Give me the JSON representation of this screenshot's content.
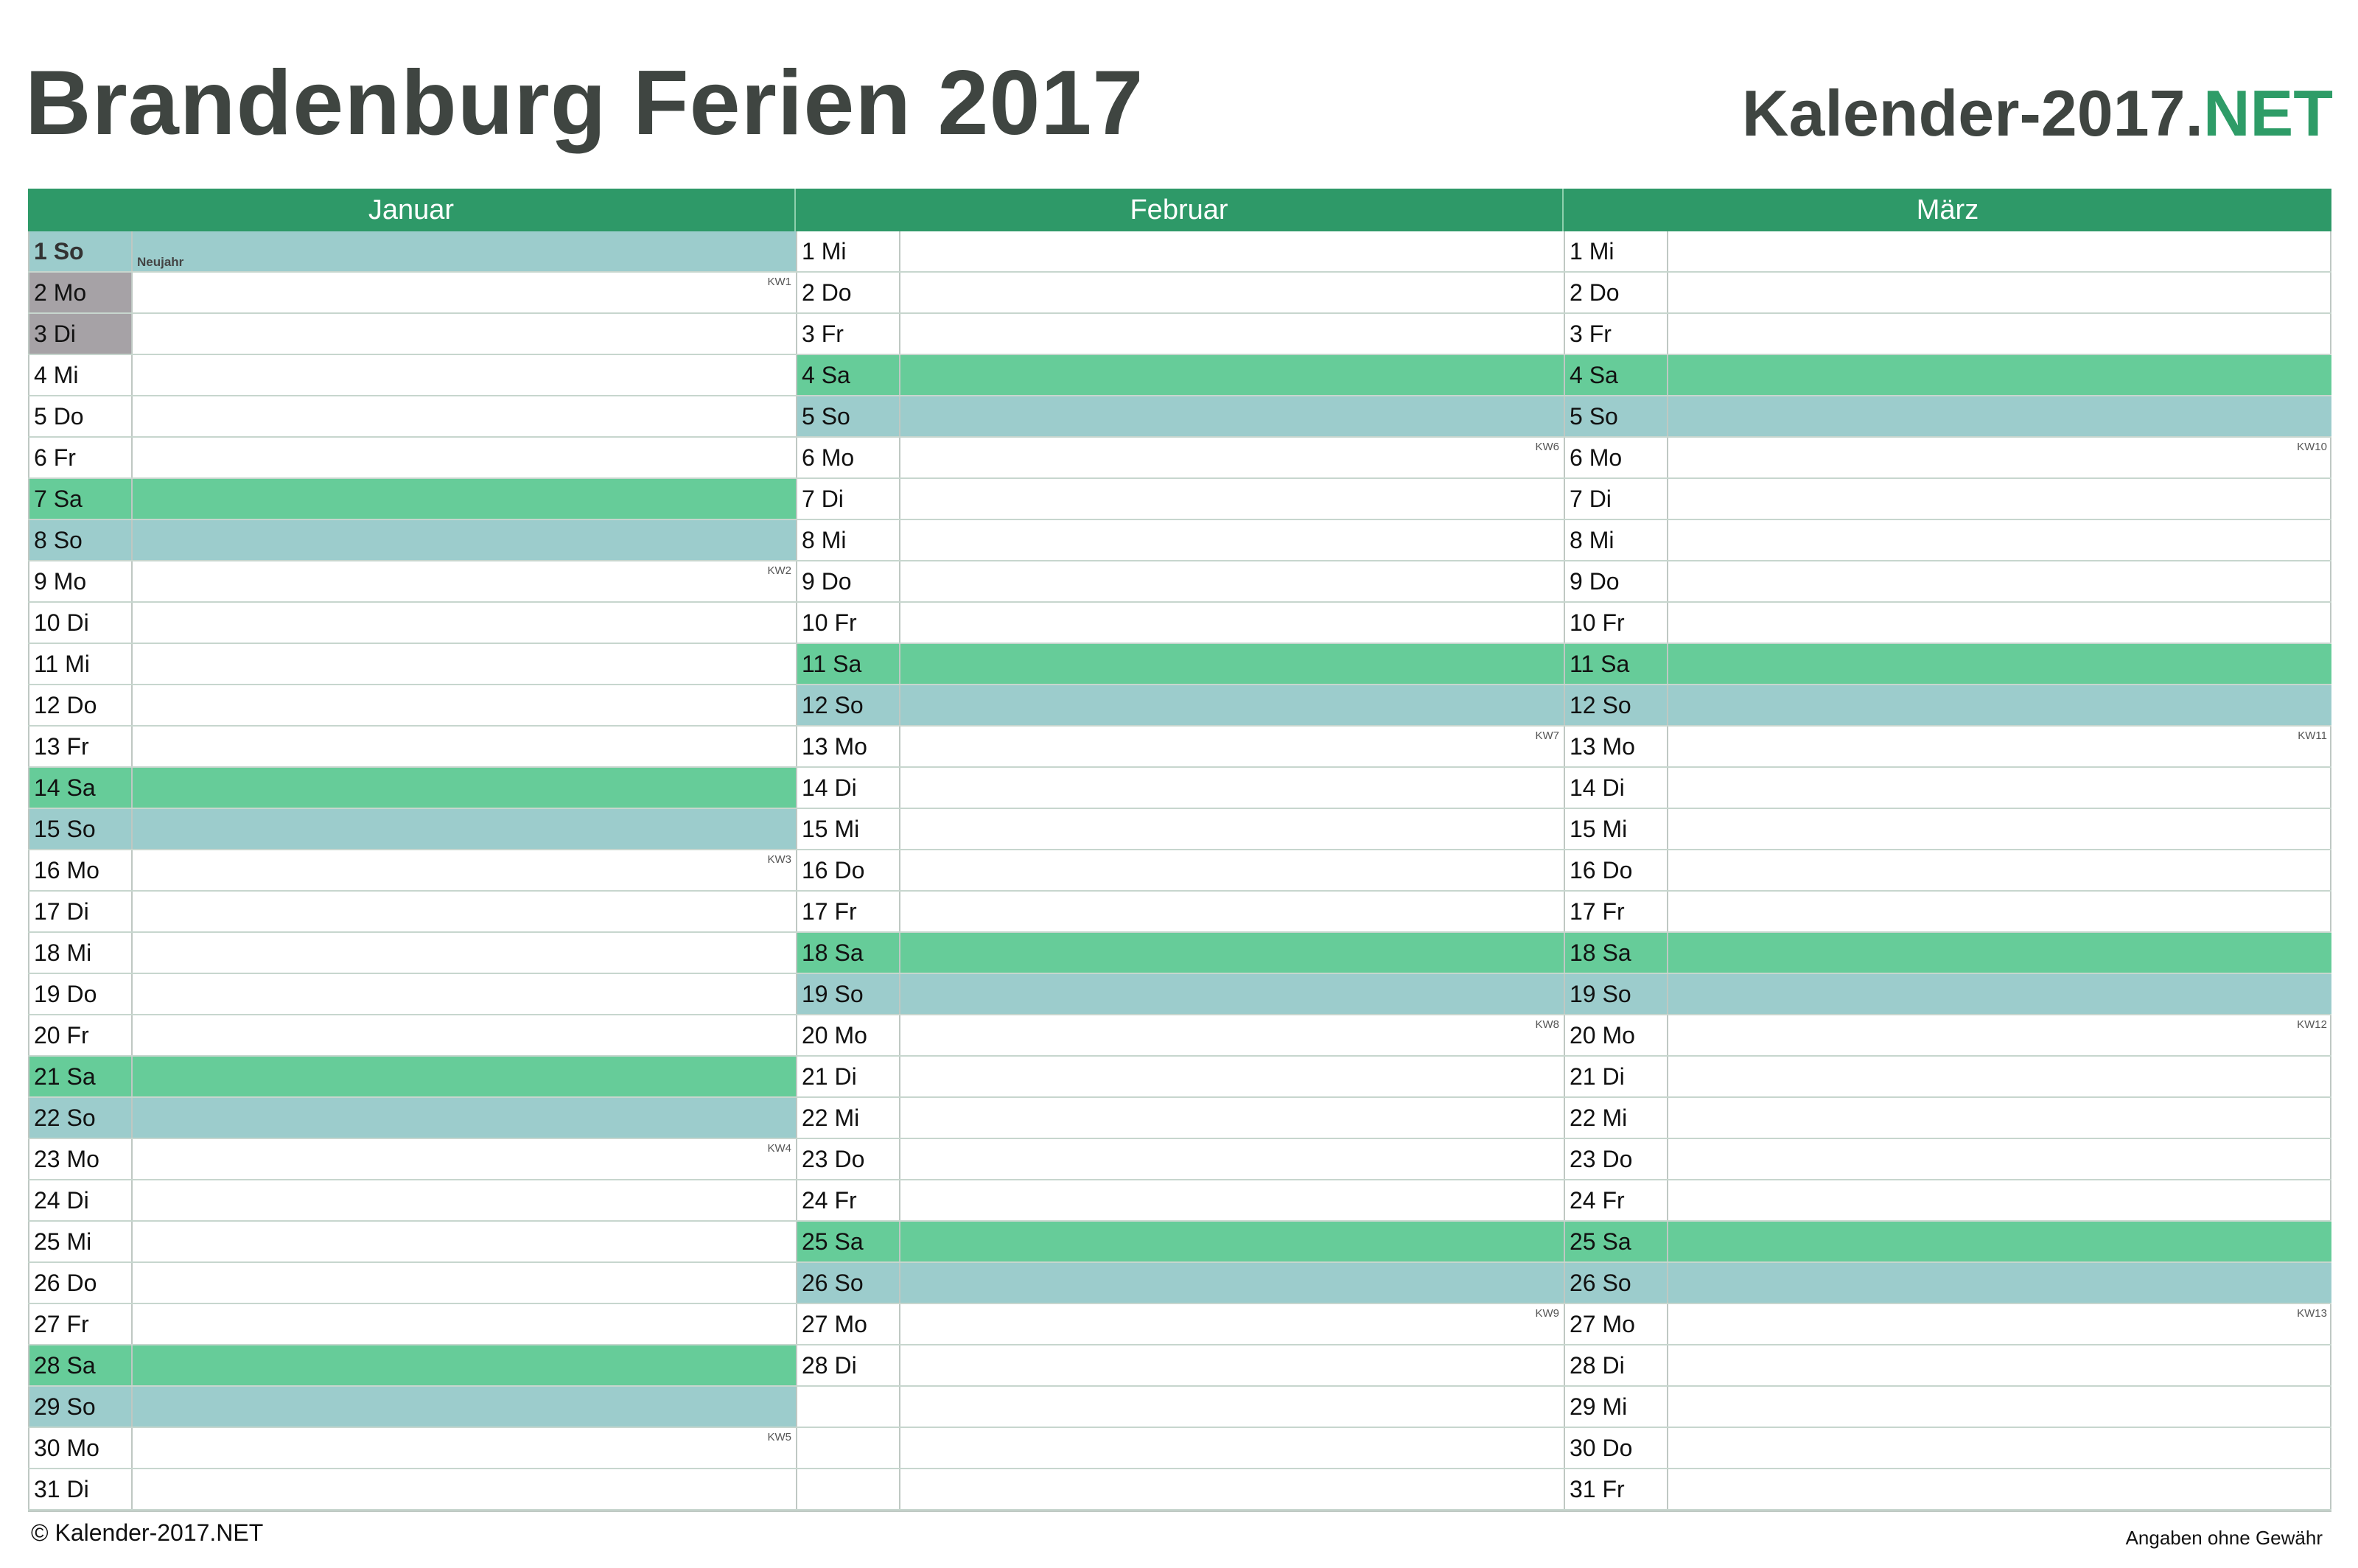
{
  "header": {
    "title": "Brandenburg Ferien 2017",
    "brand_main": "Kalender-2017.",
    "brand_suffix": "NET"
  },
  "colors": {
    "header_green": "#2e9968",
    "saturday": "#66cc99",
    "sunday": "#9ccccc",
    "vacation": "#a6a2a6",
    "brand_accent": "#2e9c67"
  },
  "months": [
    {
      "name": "Januar",
      "days": [
        {
          "label": "1 So",
          "type": "sun",
          "holiday": "Neujahr"
        },
        {
          "label": "2 Mo",
          "type": "vac",
          "kw": "KW1"
        },
        {
          "label": "3 Di",
          "type": "vac"
        },
        {
          "label": "4 Mi"
        },
        {
          "label": "5 Do"
        },
        {
          "label": "6 Fr"
        },
        {
          "label": "7 Sa",
          "type": "sat"
        },
        {
          "label": "8 So",
          "type": "sun"
        },
        {
          "label": "9 Mo",
          "kw": "KW2"
        },
        {
          "label": "10 Di"
        },
        {
          "label": "11 Mi"
        },
        {
          "label": "12 Do"
        },
        {
          "label": "13 Fr"
        },
        {
          "label": "14 Sa",
          "type": "sat"
        },
        {
          "label": "15 So",
          "type": "sun"
        },
        {
          "label": "16 Mo",
          "kw": "KW3"
        },
        {
          "label": "17 Di"
        },
        {
          "label": "18 Mi"
        },
        {
          "label": "19 Do"
        },
        {
          "label": "20 Fr"
        },
        {
          "label": "21 Sa",
          "type": "sat"
        },
        {
          "label": "22 So",
          "type": "sun"
        },
        {
          "label": "23 Mo",
          "kw": "KW4"
        },
        {
          "label": "24 Di"
        },
        {
          "label": "25 Mi"
        },
        {
          "label": "26 Do"
        },
        {
          "label": "27 Fr"
        },
        {
          "label": "28 Sa",
          "type": "sat"
        },
        {
          "label": "29 So",
          "type": "sun"
        },
        {
          "label": "30 Mo",
          "kw": "KW5"
        },
        {
          "label": "31 Di"
        }
      ]
    },
    {
      "name": "Februar",
      "days": [
        {
          "label": "1 Mi"
        },
        {
          "label": "2 Do"
        },
        {
          "label": "3 Fr"
        },
        {
          "label": "4 Sa",
          "type": "sat"
        },
        {
          "label": "5 So",
          "type": "sun"
        },
        {
          "label": "6 Mo",
          "kw": "KW6"
        },
        {
          "label": "7 Di"
        },
        {
          "label": "8 Mi"
        },
        {
          "label": "9 Do"
        },
        {
          "label": "10 Fr"
        },
        {
          "label": "11 Sa",
          "type": "sat"
        },
        {
          "label": "12 So",
          "type": "sun"
        },
        {
          "label": "13 Mo",
          "kw": "KW7"
        },
        {
          "label": "14 Di"
        },
        {
          "label": "15 Mi"
        },
        {
          "label": "16 Do"
        },
        {
          "label": "17 Fr"
        },
        {
          "label": "18 Sa",
          "type": "sat"
        },
        {
          "label": "19 So",
          "type": "sun"
        },
        {
          "label": "20 Mo",
          "kw": "KW8"
        },
        {
          "label": "21 Di"
        },
        {
          "label": "22 Mi"
        },
        {
          "label": "23 Do"
        },
        {
          "label": "24 Fr"
        },
        {
          "label": "25 Sa",
          "type": "sat"
        },
        {
          "label": "26 So",
          "type": "sun"
        },
        {
          "label": "27 Mo",
          "kw": "KW9"
        },
        {
          "label": "28 Di"
        },
        {
          "label": "",
          "type": "empty"
        },
        {
          "label": "",
          "type": "empty"
        },
        {
          "label": "",
          "type": "empty"
        }
      ]
    },
    {
      "name": "März",
      "days": [
        {
          "label": "1 Mi"
        },
        {
          "label": "2 Do"
        },
        {
          "label": "3 Fr"
        },
        {
          "label": "4 Sa",
          "type": "sat"
        },
        {
          "label": "5 So",
          "type": "sun"
        },
        {
          "label": "6 Mo",
          "kw": "KW10"
        },
        {
          "label": "7 Di"
        },
        {
          "label": "8 Mi"
        },
        {
          "label": "9 Do"
        },
        {
          "label": "10 Fr"
        },
        {
          "label": "11 Sa",
          "type": "sat"
        },
        {
          "label": "12 So",
          "type": "sun"
        },
        {
          "label": "13 Mo",
          "kw": "KW11"
        },
        {
          "label": "14 Di"
        },
        {
          "label": "15 Mi"
        },
        {
          "label": "16 Do"
        },
        {
          "label": "17 Fr"
        },
        {
          "label": "18 Sa",
          "type": "sat"
        },
        {
          "label": "19 So",
          "type": "sun"
        },
        {
          "label": "20 Mo",
          "kw": "KW12"
        },
        {
          "label": "21 Di"
        },
        {
          "label": "22 Mi"
        },
        {
          "label": "23 Do"
        },
        {
          "label": "24 Fr"
        },
        {
          "label": "25 Sa",
          "type": "sat"
        },
        {
          "label": "26 So",
          "type": "sun"
        },
        {
          "label": "27 Mo",
          "kw": "KW13"
        },
        {
          "label": "28 Di"
        },
        {
          "label": "29 Mi"
        },
        {
          "label": "30 Do"
        },
        {
          "label": "31 Fr"
        }
      ]
    }
  ],
  "footer": {
    "copyright": "© Kalender-2017.NET",
    "disclaimer": "Angaben ohne Gewähr"
  }
}
